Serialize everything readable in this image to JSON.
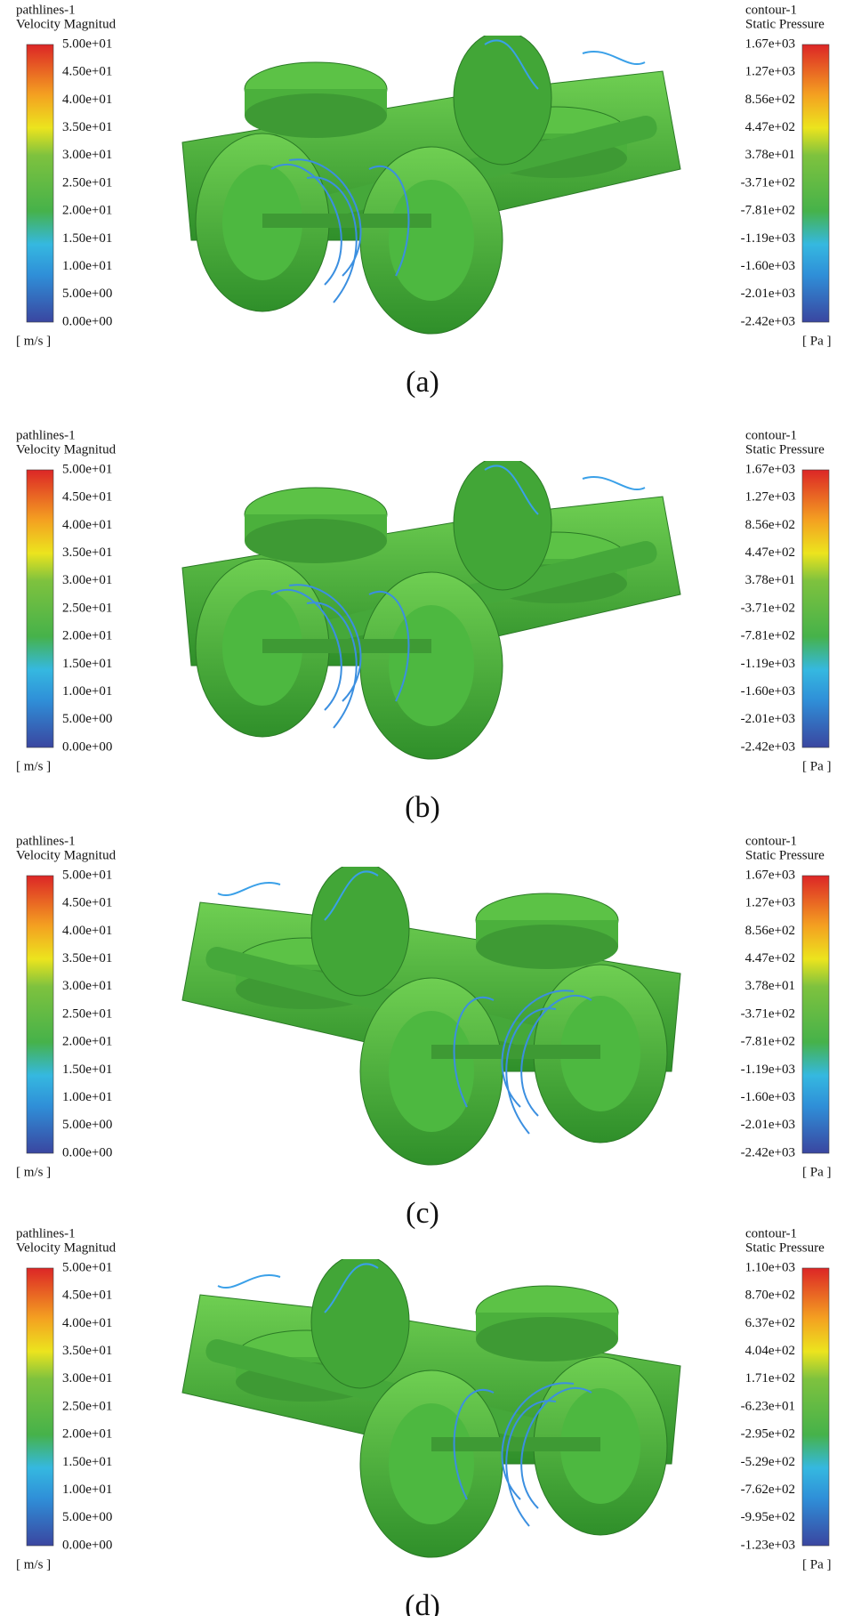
{
  "panels": [
    {
      "left": {
        "title": [
          "pathlines-1",
          "Velocity Magnitud"
        ],
        "ticks": [
          "5.00e+01",
          "4.50e+01",
          "4.00e+01",
          "3.50e+01",
          "3.00e+01",
          "2.50e+01",
          "2.00e+01",
          "1.50e+01",
          "1.00e+01",
          "5.00e+00",
          "0.00e+00"
        ],
        "unit": "[ m/s ]"
      },
      "right": {
        "title": [
          "contour-1",
          "Static Pressure"
        ],
        "ticks": [
          "1.67e+03",
          "1.27e+03",
          "8.56e+02",
          "4.47e+02",
          "3.78e+01",
          "-3.71e+02",
          "-7.81e+02",
          "-1.19e+03",
          "-1.60e+03",
          "-2.01e+03",
          "-2.42e+03"
        ],
        "unit": "[ Pa ]"
      },
      "caption": "(a)"
    },
    {
      "left": {
        "title": [
          "pathlines-1",
          "Velocity Magnitud"
        ],
        "ticks": [
          "5.00e+01",
          "4.50e+01",
          "4.00e+01",
          "3.50e+01",
          "3.00e+01",
          "2.50e+01",
          "2.00e+01",
          "1.50e+01",
          "1.00e+01",
          "5.00e+00",
          "0.00e+00"
        ],
        "unit": "[ m/s ]"
      },
      "right": {
        "title": [
          "contour-1",
          "Static Pressure"
        ],
        "ticks": [
          "1.67e+03",
          "1.27e+03",
          "8.56e+02",
          "4.47e+02",
          "3.78e+01",
          "-3.71e+02",
          "-7.81e+02",
          "-1.19e+03",
          "-1.60e+03",
          "-2.01e+03",
          "-2.42e+03"
        ],
        "unit": "[ Pa ]"
      },
      "caption": "(b)"
    },
    {
      "left": {
        "title": [
          "pathlines-1",
          "Velocity Magnitud"
        ],
        "ticks": [
          "5.00e+01",
          "4.50e+01",
          "4.00e+01",
          "3.50e+01",
          "3.00e+01",
          "2.50e+01",
          "2.00e+01",
          "1.50e+01",
          "1.00e+01",
          "5.00e+00",
          "0.00e+00"
        ],
        "unit": "[ m/s ]"
      },
      "right": {
        "title": [
          "contour-1",
          "Static Pressure"
        ],
        "ticks": [
          "1.67e+03",
          "1.27e+03",
          "8.56e+02",
          "4.47e+02",
          "3.78e+01",
          "-3.71e+02",
          "-7.81e+02",
          "-1.19e+03",
          "-1.60e+03",
          "-2.01e+03",
          "-2.42e+03"
        ],
        "unit": "[ Pa ]"
      },
      "caption": "(c)"
    },
    {
      "left": {
        "title": [
          "pathlines-1",
          "Velocity Magnitud"
        ],
        "ticks": [
          "5.00e+01",
          "4.50e+01",
          "4.00e+01",
          "3.50e+01",
          "3.00e+01",
          "2.50e+01",
          "2.00e+01",
          "1.50e+01",
          "1.00e+01",
          "5.00e+00",
          "0.00e+00"
        ],
        "unit": "[ m/s ]"
      },
      "right": {
        "title": [
          "contour-1",
          "Static Pressure"
        ],
        "ticks": [
          "1.10e+03",
          "8.70e+02",
          "6.37e+02",
          "4.04e+02",
          "1.71e+02",
          "-6.23e+01",
          "-2.95e+02",
          "-5.29e+02",
          "-7.62e+02",
          "-9.95e+02",
          "-1.23e+03"
        ],
        "unit": "[ Pa ]"
      },
      "caption": "(d)"
    }
  ]
}
